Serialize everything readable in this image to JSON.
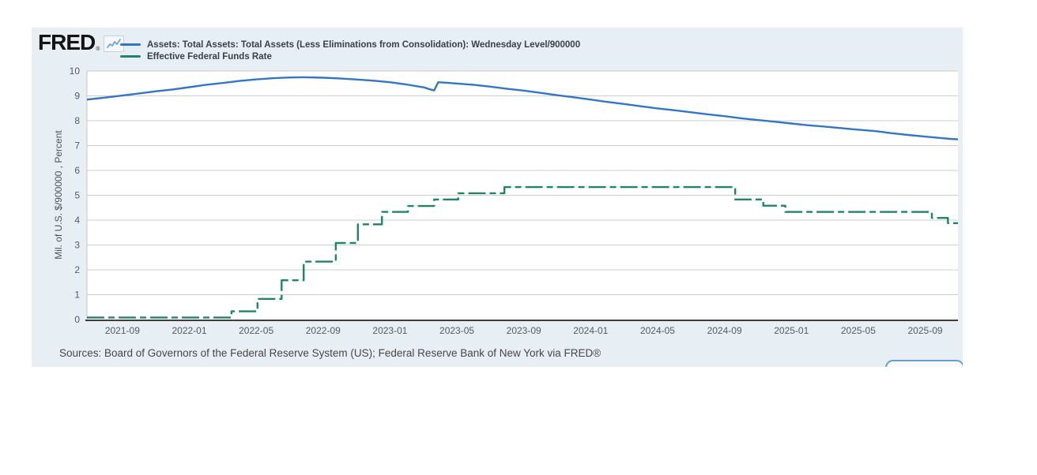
{
  "branding": {
    "logo_text": "FRED",
    "registered_mark": "®",
    "logo_icon": "line-chart-icon"
  },
  "legend": [
    {
      "label": "Assets: Total Assets: Total Assets (Less Eliminations from Consolidation): Wednesday Level/900000",
      "color": "#3276c4",
      "style": "solid"
    },
    {
      "label": "Effective Federal Funds Rate",
      "color": "#1e8569",
      "style": "dash-dot"
    }
  ],
  "source_note": "Sources: Board of Governors of the Federal Reserve System (US); Federal Reserve Bank of New York via FRED®",
  "colors": {
    "widget_background": "#e7eef4",
    "plot_background": "#ffffff",
    "gridline": "#cccccc",
    "axis_line": "#3d3d3d",
    "tick_text": "#555b63",
    "assets_line": "#3276c4",
    "effr_line": "#1e8569"
  },
  "chart_data": {
    "type": "line",
    "title": "",
    "xlabel": "",
    "ylabel": "Mil. of U.S. $/900000 , Percent",
    "ylim": [
      0,
      10
    ],
    "yticks": [
      0,
      1,
      2,
      3,
      4,
      5,
      6,
      7,
      8,
      9,
      10
    ],
    "xticks": [
      "2021-09",
      "2022-01",
      "2022-05",
      "2022-09",
      "2023-01",
      "2023-05",
      "2023-09",
      "2024-01",
      "2024-05",
      "2024-09",
      "2025-01",
      "2025-05",
      "2025-09"
    ],
    "x_domain": [
      2021.49,
      2025.83
    ],
    "grid": "horizontal",
    "legend_position": "top-left",
    "series": [
      {
        "name": "Assets: Total Assets: Total Assets (Less Eliminations from Consolidation): Wednesday Level/900000",
        "type": "line",
        "color": "#3276c4",
        "width": 2.4,
        "points": [
          [
            2021.49,
            8.85
          ],
          [
            2021.58,
            8.93
          ],
          [
            2021.67,
            9.02
          ],
          [
            2021.75,
            9.1
          ],
          [
            2021.83,
            9.18
          ],
          [
            2021.92,
            9.26
          ],
          [
            2022.0,
            9.35
          ],
          [
            2022.08,
            9.44
          ],
          [
            2022.17,
            9.52
          ],
          [
            2022.25,
            9.6
          ],
          [
            2022.33,
            9.66
          ],
          [
            2022.42,
            9.71
          ],
          [
            2022.5,
            9.74
          ],
          [
            2022.58,
            9.75
          ],
          [
            2022.67,
            9.73
          ],
          [
            2022.75,
            9.7
          ],
          [
            2022.83,
            9.66
          ],
          [
            2022.92,
            9.61
          ],
          [
            2023.0,
            9.55
          ],
          [
            2023.08,
            9.46
          ],
          [
            2023.17,
            9.34
          ],
          [
            2023.2,
            9.26
          ],
          [
            2023.22,
            9.22
          ],
          [
            2023.24,
            9.55
          ],
          [
            2023.28,
            9.53
          ],
          [
            2023.33,
            9.5
          ],
          [
            2023.42,
            9.44
          ],
          [
            2023.5,
            9.37
          ],
          [
            2023.58,
            9.29
          ],
          [
            2023.67,
            9.21
          ],
          [
            2023.75,
            9.12
          ],
          [
            2023.83,
            9.03
          ],
          [
            2023.92,
            8.94
          ],
          [
            2024.0,
            8.85
          ],
          [
            2024.08,
            8.76
          ],
          [
            2024.17,
            8.67
          ],
          [
            2024.25,
            8.58
          ],
          [
            2024.33,
            8.5
          ],
          [
            2024.42,
            8.42
          ],
          [
            2024.5,
            8.34
          ],
          [
            2024.58,
            8.26
          ],
          [
            2024.67,
            8.18
          ],
          [
            2024.75,
            8.1
          ],
          [
            2024.83,
            8.03
          ],
          [
            2024.92,
            7.96
          ],
          [
            2025.0,
            7.89
          ],
          [
            2025.08,
            7.82
          ],
          [
            2025.17,
            7.76
          ],
          [
            2025.25,
            7.7
          ],
          [
            2025.33,
            7.64
          ],
          [
            2025.42,
            7.58
          ],
          [
            2025.5,
            7.5
          ],
          [
            2025.58,
            7.43
          ],
          [
            2025.67,
            7.36
          ],
          [
            2025.75,
            7.3
          ],
          [
            2025.79,
            7.27
          ],
          [
            2025.83,
            7.25
          ]
        ]
      },
      {
        "name": "Effective Federal Funds Rate",
        "type": "step",
        "color": "#1e8569",
        "width": 2.4,
        "dash": [
          22,
          5,
          8,
          5
        ],
        "points": [
          [
            2021.49,
            0.08
          ],
          [
            2022.21,
            0.33
          ],
          [
            2022.34,
            0.83
          ],
          [
            2022.46,
            1.58
          ],
          [
            2022.57,
            2.33
          ],
          [
            2022.73,
            3.08
          ],
          [
            2022.84,
            3.83
          ],
          [
            2022.96,
            4.33
          ],
          [
            2023.09,
            4.57
          ],
          [
            2023.22,
            4.83
          ],
          [
            2023.34,
            5.08
          ],
          [
            2023.57,
            5.33
          ],
          [
            2024.72,
            4.83
          ],
          [
            2024.86,
            4.58
          ],
          [
            2024.97,
            4.33
          ],
          [
            2025.7,
            4.09
          ],
          [
            2025.78,
            3.88
          ]
        ]
      }
    ]
  }
}
